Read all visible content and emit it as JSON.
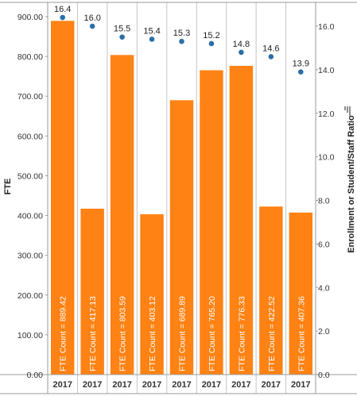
{
  "chart_data": {
    "type": "bar",
    "categories": [
      "2017",
      "2017",
      "2017",
      "2017",
      "2017",
      "2017",
      "2017",
      "2017",
      "2017"
    ],
    "series": [
      {
        "kind": "bar",
        "axis": "left",
        "values": [
          889.42,
          417.13,
          803.59,
          403.12,
          689.89,
          765.2,
          776.33,
          422.52,
          407.36
        ],
        "labels": [
          "FTE Count = 889.42",
          "FTE Count = 417.13",
          "FTE Count = 803.59",
          "FTE Count = 403.12",
          "FTE Count = 689.89",
          "FTE Count = 765.20",
          "FTE Count = 776.33",
          "FTE Count = 422.52",
          "FTE Count = 407.36"
        ]
      },
      {
        "kind": "scatter",
        "axis": "right",
        "values": [
          16.4,
          16.0,
          15.5,
          15.4,
          15.3,
          15.2,
          14.8,
          14.6,
          13.9
        ],
        "labels": [
          "16.4",
          "16.0",
          "15.5",
          "15.4",
          "15.3",
          "15.2",
          "14.8",
          "14.6",
          "13.9"
        ]
      }
    ],
    "ylabel": "FTE",
    "y2label": "Enrollment or Student/Staff Ratio",
    "ylim": [
      0,
      900
    ],
    "y2lim": [
      0,
      16
    ],
    "yticks": [
      "0.00",
      "100.00",
      "200.00",
      "300.00",
      "400.00",
      "500.00",
      "600.00",
      "700.00",
      "800.00",
      "900.00"
    ],
    "y2ticks": [
      "0.0",
      "2.0",
      "4.0",
      "6.0",
      "8.0",
      "10.0",
      "12.0",
      "14.0",
      "16.0"
    ],
    "grid": false,
    "colors": {
      "bar": "#ff8214",
      "dot": "#2b6fa8",
      "frame": "#9a9a9a",
      "divider": "#c4c4c4"
    }
  }
}
